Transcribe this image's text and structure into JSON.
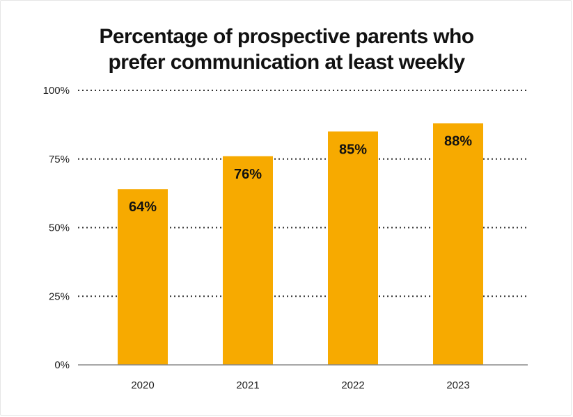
{
  "title_lines": [
    "Percentage of prospective parents who",
    "prefer communication at least weekly"
  ],
  "chart_data": {
    "type": "bar",
    "title": "Percentage of prospective parents who prefer communication at least weekly",
    "categories": [
      "2020",
      "2021",
      "2022",
      "2023"
    ],
    "values": [
      64,
      76,
      85,
      88
    ],
    "data_labels": [
      "64%",
      "76%",
      "85%",
      "88%"
    ],
    "ylim": [
      0,
      100
    ],
    "yticks": [
      0,
      25,
      50,
      75,
      100
    ],
    "ytick_labels": [
      "0%",
      "25%",
      "50%",
      "75%",
      "100%"
    ],
    "grid": "dotted horizontal",
    "legend": "none",
    "bar_color": "#F7AA00",
    "grid_color": "#333333",
    "axis_color": "#888888"
  }
}
